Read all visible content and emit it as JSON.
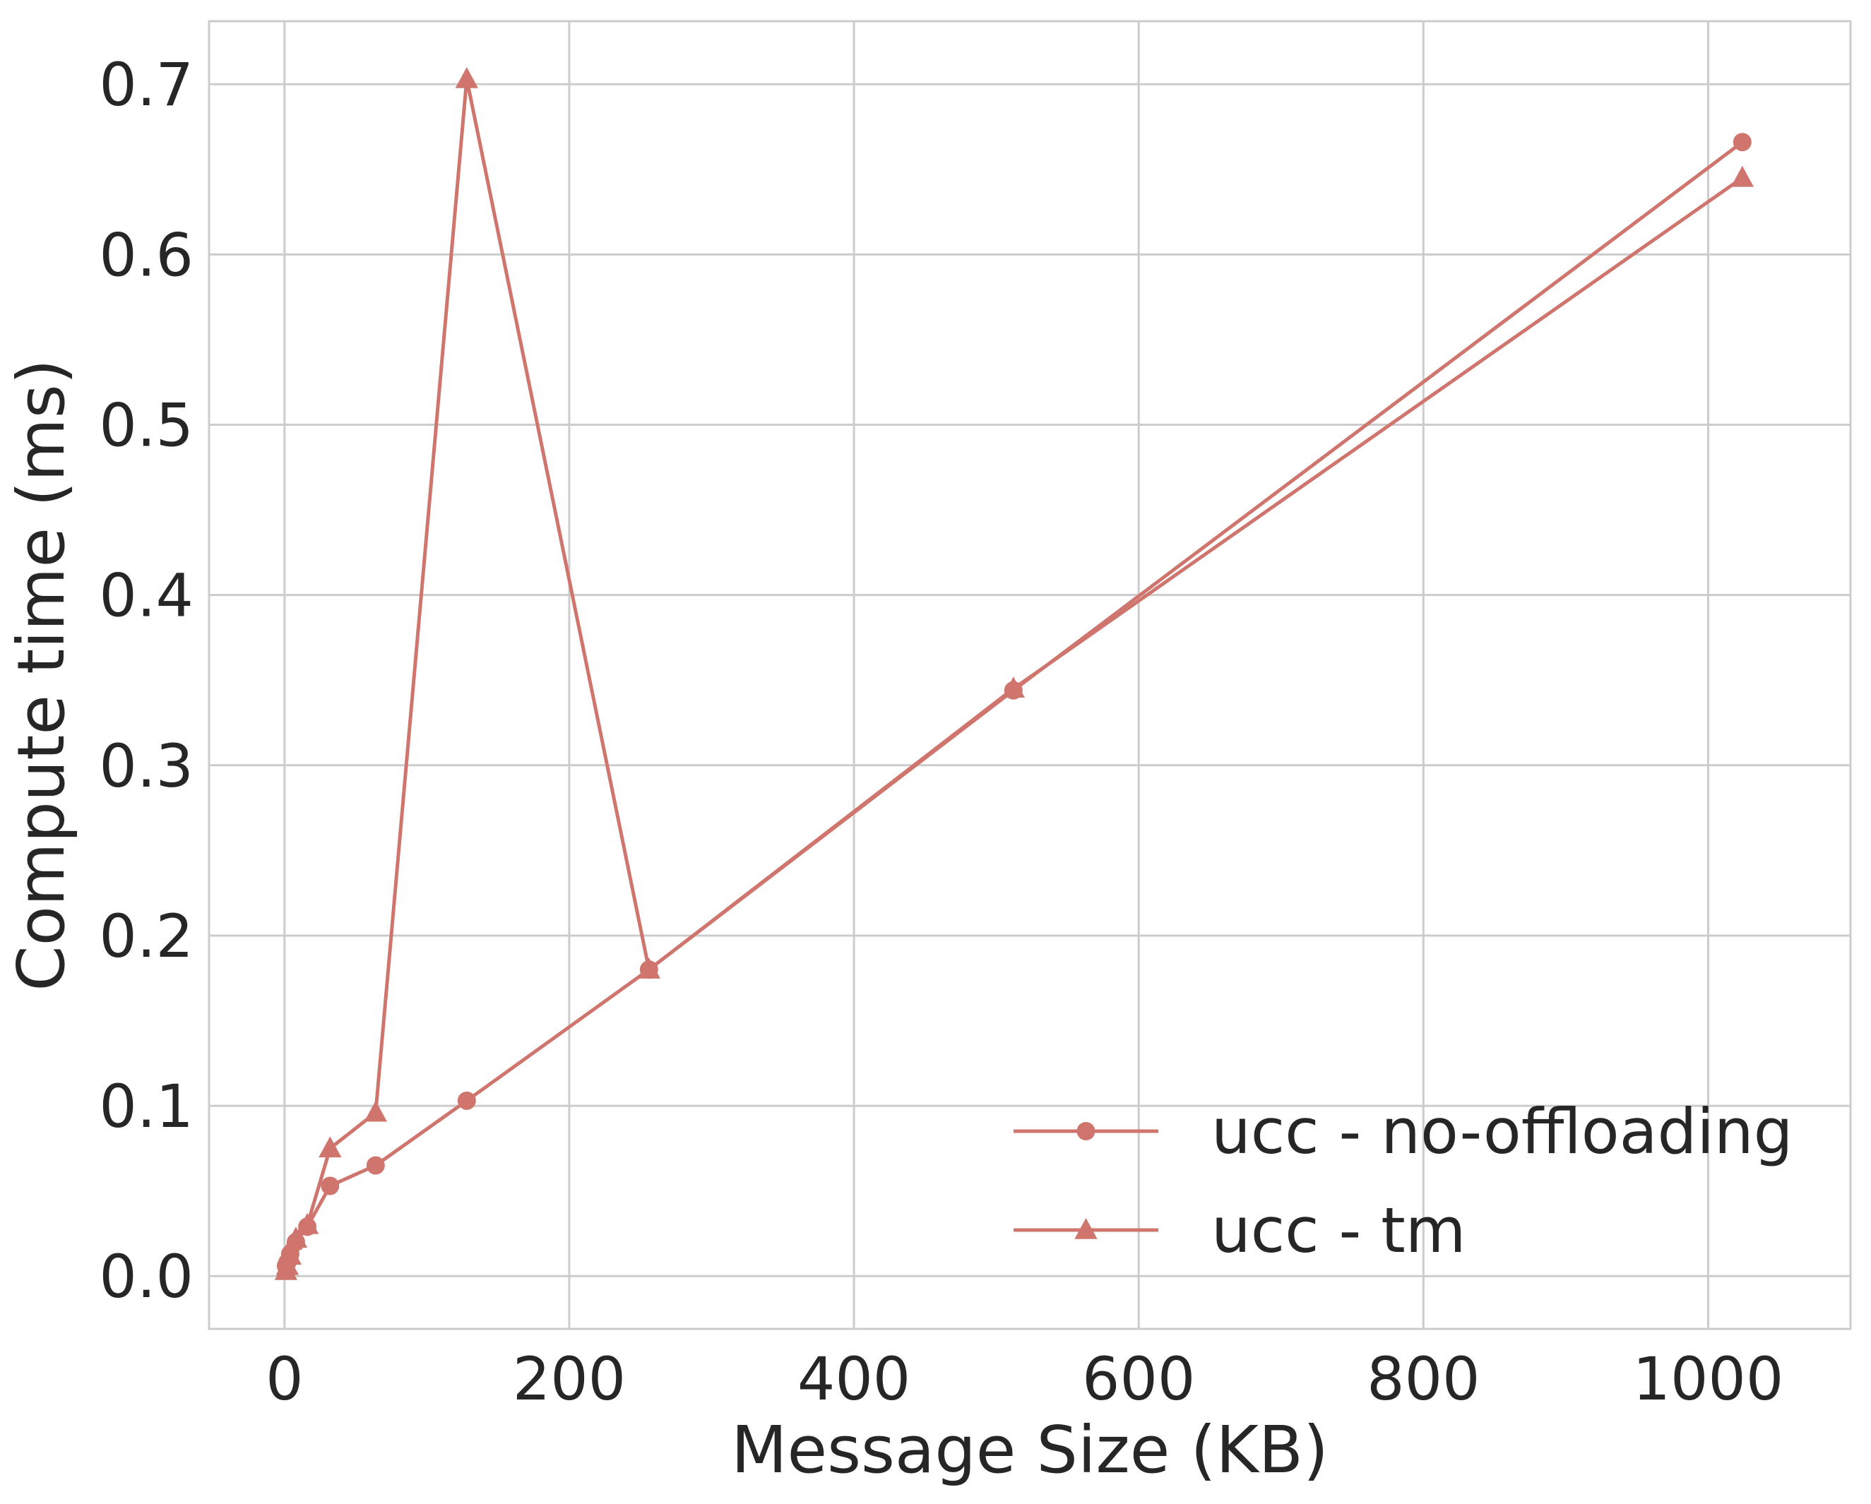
{
  "chart_data": {
    "type": "line",
    "title": "",
    "xlabel": "Message Size (KB)",
    "ylabel": "Compute time (ms)",
    "xlim": [
      -53,
      1100
    ],
    "ylim": [
      -0.031,
      0.737
    ],
    "xticks": [
      0,
      200,
      400,
      600,
      800,
      1000
    ],
    "xtick_labels": [
      "0",
      "200",
      "400",
      "600",
      "800",
      "1000"
    ],
    "yticks": [
      0.0,
      0.1,
      0.2,
      0.3,
      0.4,
      0.5,
      0.6,
      0.7
    ],
    "ytick_labels": [
      "0.0",
      "0.1",
      "0.2",
      "0.3",
      "0.4",
      "0.5",
      "0.6",
      "0.7"
    ],
    "grid": true,
    "legend_position": "lower-right",
    "series": [
      {
        "name": "ucc - no-offloading",
        "marker": "circle",
        "color": "#d0756d",
        "x": [
          1,
          2,
          4,
          8,
          16,
          32,
          64,
          128,
          256,
          512,
          1024
        ],
        "y": [
          0.006,
          0.008,
          0.013,
          0.02,
          0.029,
          0.053,
          0.065,
          0.103,
          0.18,
          0.344,
          0.666
        ]
      },
      {
        "name": "ucc - tm",
        "marker": "triangle",
        "color": "#d0756d",
        "x": [
          1,
          2,
          4,
          8,
          16,
          32,
          64,
          128,
          256,
          512,
          1024
        ],
        "y": [
          0.003,
          0.006,
          0.012,
          0.022,
          0.03,
          0.075,
          0.096,
          0.703,
          0.18,
          0.345,
          0.645
        ]
      }
    ]
  }
}
